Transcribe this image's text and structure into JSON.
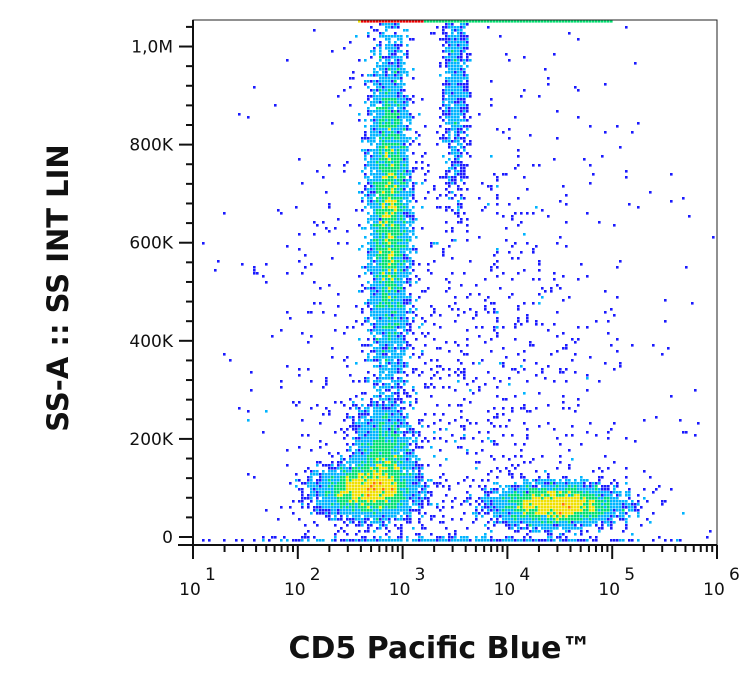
{
  "chart_data": {
    "type": "scatter",
    "style": "density dot plot (flow cytometry)",
    "xlabel": "CD5 Pacific Blue™",
    "ylabel": "SS-A :: SS INT LIN",
    "x_scale": "log",
    "xlim": [
      10,
      1000000
    ],
    "ylim": [
      0,
      1050000
    ],
    "x_tick_labels": [
      {
        "value": 10,
        "base": "10",
        "exp": "1"
      },
      {
        "value": 100,
        "base": "10",
        "exp": "2"
      },
      {
        "value": 1000,
        "base": "10",
        "exp": "3"
      },
      {
        "value": 10000,
        "base": "10",
        "exp": "4"
      },
      {
        "value": 100000,
        "base": "10",
        "exp": "5"
      },
      {
        "value": 1000000,
        "base": "10",
        "exp": "6"
      }
    ],
    "y_tick_labels": [
      {
        "value": 0,
        "label": "0"
      },
      {
        "value": 200000,
        "label": "200K"
      },
      {
        "value": 400000,
        "label": "400K"
      },
      {
        "value": 600000,
        "label": "600K"
      },
      {
        "value": 800000,
        "label": "800K"
      },
      {
        "value": 1000000,
        "label": "1,0M"
      }
    ],
    "populations": [
      {
        "x_center": 750,
        "y_center": 660000,
        "x_spread_log": 0.09,
        "y_spread": 170000,
        "weight": 0.34
      },
      {
        "x_center": 650,
        "y_center": 160000,
        "x_spread_log": 0.13,
        "y_spread": 55000,
        "weight": 0.12
      },
      {
        "x_center": 450,
        "y_center": 95000,
        "x_spread_log": 0.22,
        "y_spread": 25000,
        "weight": 0.2
      },
      {
        "x_center": 30000,
        "y_center": 65000,
        "x_spread_log": 0.28,
        "y_spread": 20000,
        "weight": 0.24
      },
      {
        "x_center": 3200,
        "y_center": 930000,
        "x_spread_log": 0.06,
        "y_spread": 110000,
        "weight": 0.04
      },
      {
        "x_center": 3000,
        "y_center": 300000,
        "x_spread_log": 0.9,
        "y_spread": 350000,
        "weight": 0.06
      }
    ],
    "saturation_band": {
      "y": 1050000,
      "x_from": 400,
      "x_to": 100000
    },
    "color_scale": [
      "#1a1aff",
      "#00b4ff",
      "#00e070",
      "#f0e000",
      "#ff7000",
      "#ee0000"
    ],
    "grid": false
  }
}
